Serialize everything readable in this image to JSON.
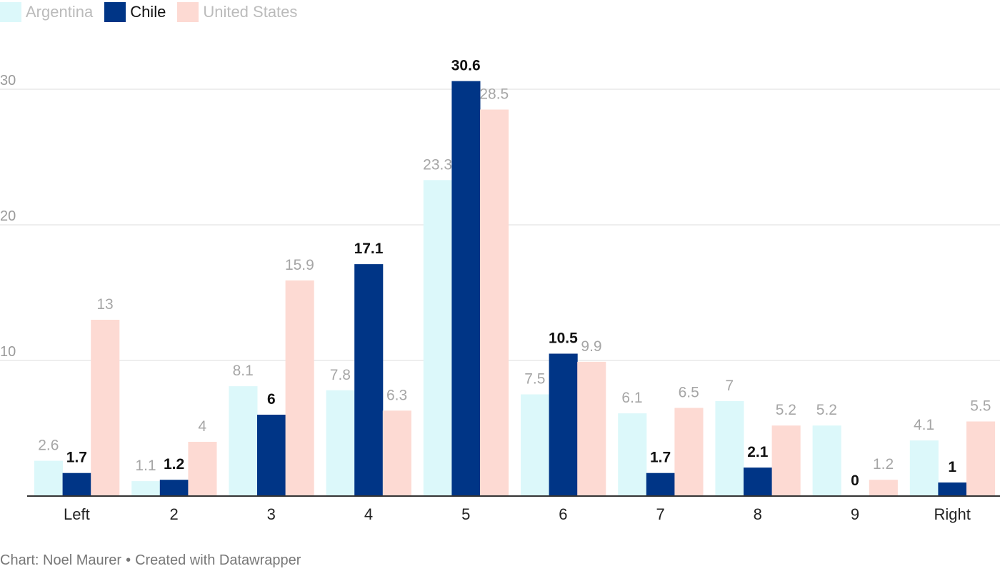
{
  "legend": [
    {
      "label": "Argentina",
      "color": "#dcf8fa",
      "text_color": "#bbbbbb",
      "highlight": false
    },
    {
      "label": "Chile",
      "color": "#003586",
      "text_color": "#111111",
      "highlight": true
    },
    {
      "label": "United States",
      "color": "#fddad3",
      "text_color": "#bbbbbb",
      "highlight": false
    }
  ],
  "chart_data": {
    "type": "bar",
    "categories": [
      "Left",
      "2",
      "3",
      "4",
      "5",
      "6",
      "7",
      "8",
      "9",
      "Right"
    ],
    "series": [
      {
        "name": "Argentina",
        "color": "#dcf8fa",
        "label_color": "#a6a6a6",
        "label_bold": false,
        "values": [
          2.6,
          1.1,
          8.1,
          7.8,
          23.3,
          7.5,
          6.1,
          7,
          5.2,
          4.1
        ]
      },
      {
        "name": "Chile",
        "color": "#003586",
        "label_color": "#111111",
        "label_bold": true,
        "values": [
          1.7,
          1.2,
          6,
          17.1,
          30.6,
          10.5,
          1.7,
          2.1,
          0,
          1
        ]
      },
      {
        "name": "United States",
        "color": "#fddad3",
        "label_color": "#a6a6a6",
        "label_bold": false,
        "values": [
          13,
          4,
          15.9,
          6.3,
          28.5,
          9.9,
          6.5,
          5.2,
          1.2,
          5.5
        ]
      }
    ],
    "yticks": [
      10,
      20,
      30
    ],
    "ylim": [
      0,
      31.5
    ],
    "grid": true,
    "legend_position": "top-left",
    "title": "",
    "xlabel": "",
    "ylabel": ""
  },
  "footer": {
    "source": "Chart: Noel Maurer",
    "separator": "•",
    "credit": "Created with Datawrapper"
  }
}
